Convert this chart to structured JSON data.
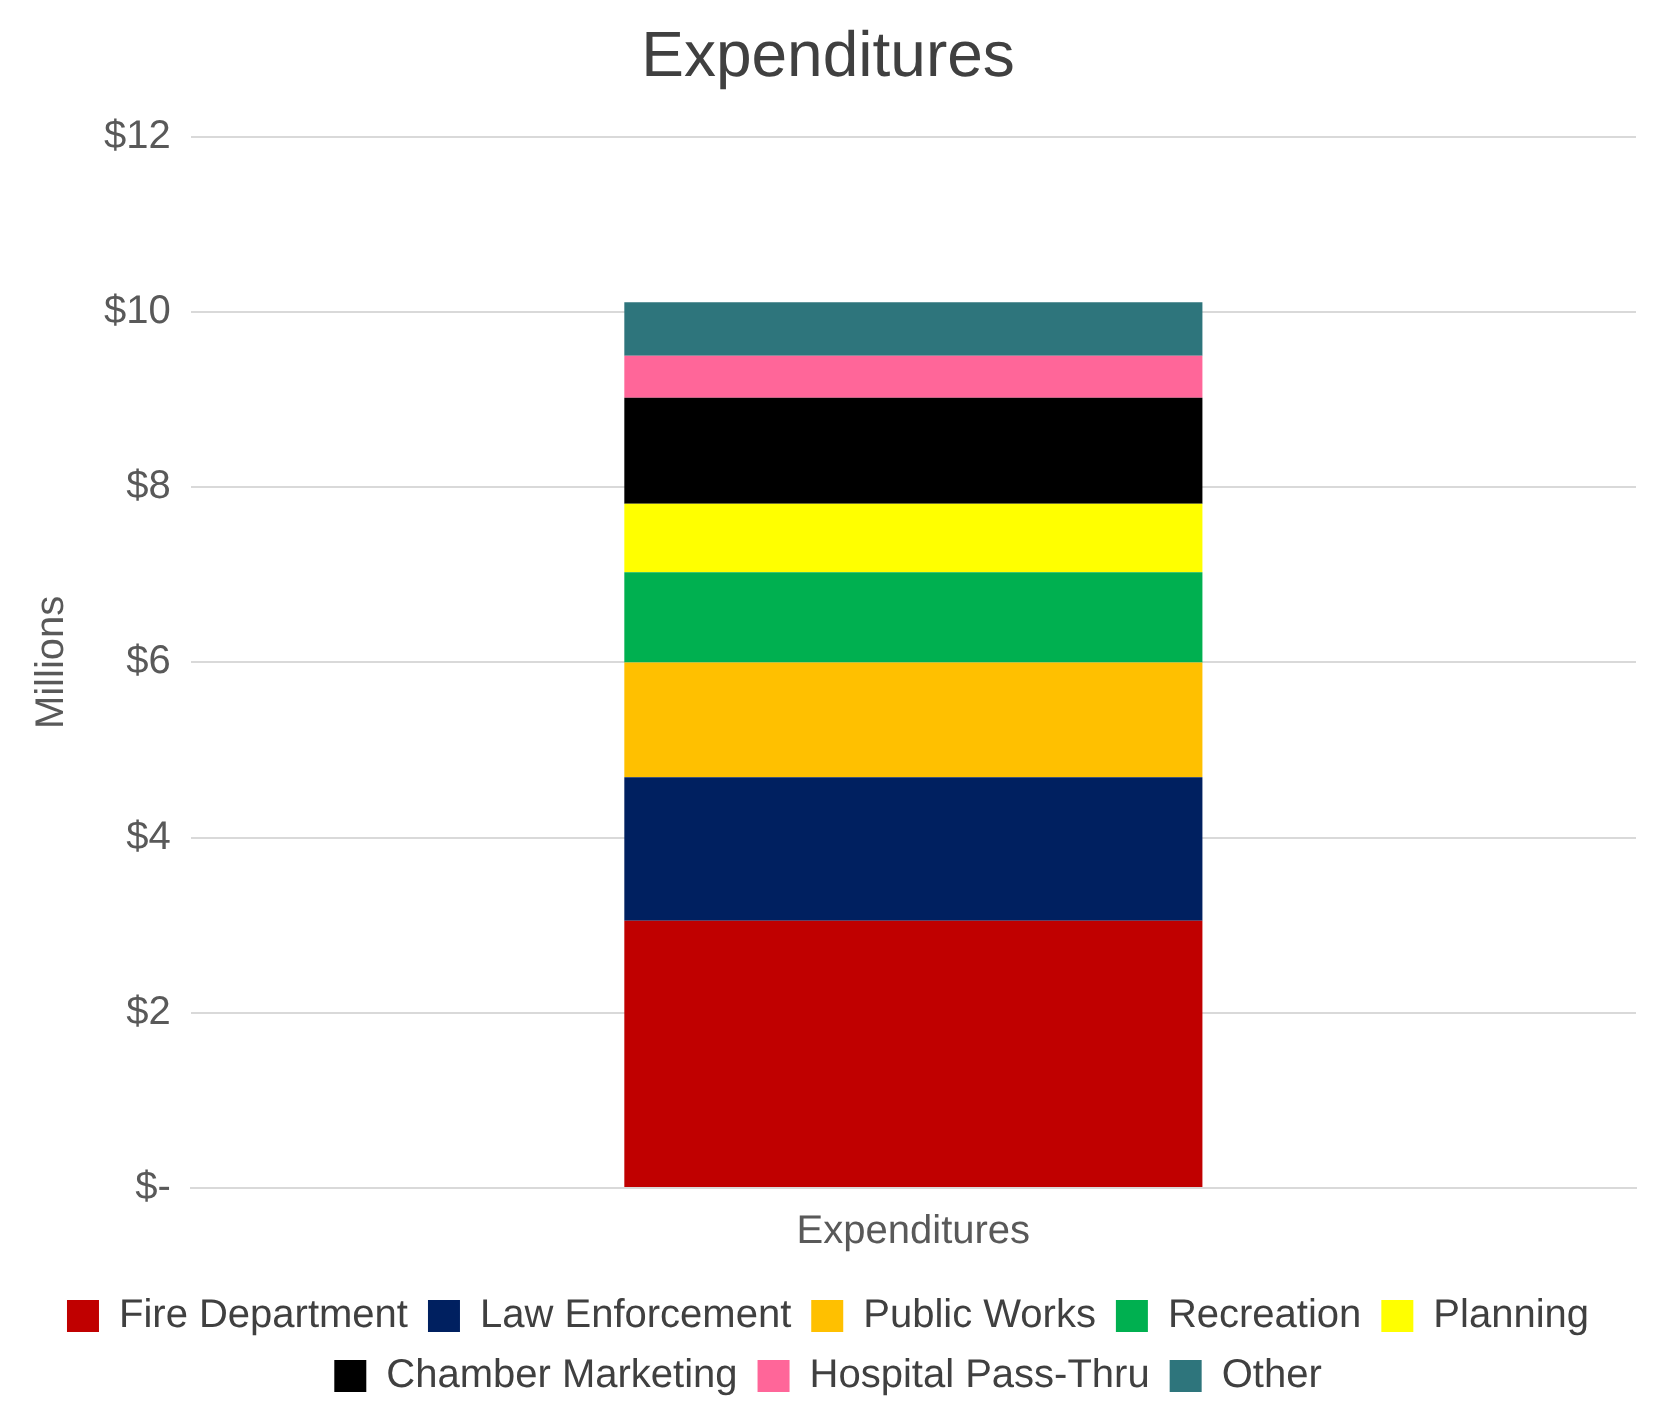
{
  "chart_data": {
    "type": "bar",
    "title": "Expenditures",
    "ylabel": "Millions",
    "categories": [
      "Expenditures"
    ],
    "stacked": true,
    "series": [
      {
        "name": "Fire Department",
        "color": "#c00000",
        "values": [
          3.05
        ]
      },
      {
        "name": "Law Enforcement",
        "color": "#002060",
        "values": [
          1.64
        ]
      },
      {
        "name": "Public Works",
        "color": "#ffc000",
        "values": [
          1.31
        ]
      },
      {
        "name": "Recreation",
        "color": "#00b050",
        "values": [
          1.03
        ]
      },
      {
        "name": "Planning",
        "color": "#ffff00",
        "values": [
          0.78
        ]
      },
      {
        "name": "Chamber Marketing",
        "color": "#000000",
        "values": [
          1.21
        ]
      },
      {
        "name": "Hospital Pass-Thru",
        "color": "#ff6699",
        "values": [
          0.48
        ]
      },
      {
        "name": "Other",
        "color": "#2e757c",
        "values": [
          0.61
        ]
      }
    ],
    "ylim": [
      0,
      12
    ],
    "yticks": [
      {
        "value": 0,
        "label": "$-"
      },
      {
        "value": 2,
        "label": "$2"
      },
      {
        "value": 4,
        "label": "$4"
      },
      {
        "value": 6,
        "label": "$6"
      },
      {
        "value": 8,
        "label": "$8"
      },
      {
        "value": 10,
        "label": "$10"
      },
      {
        "value": 12,
        "label": "$12"
      }
    ],
    "grid": "y",
    "legend": "bottom"
  }
}
